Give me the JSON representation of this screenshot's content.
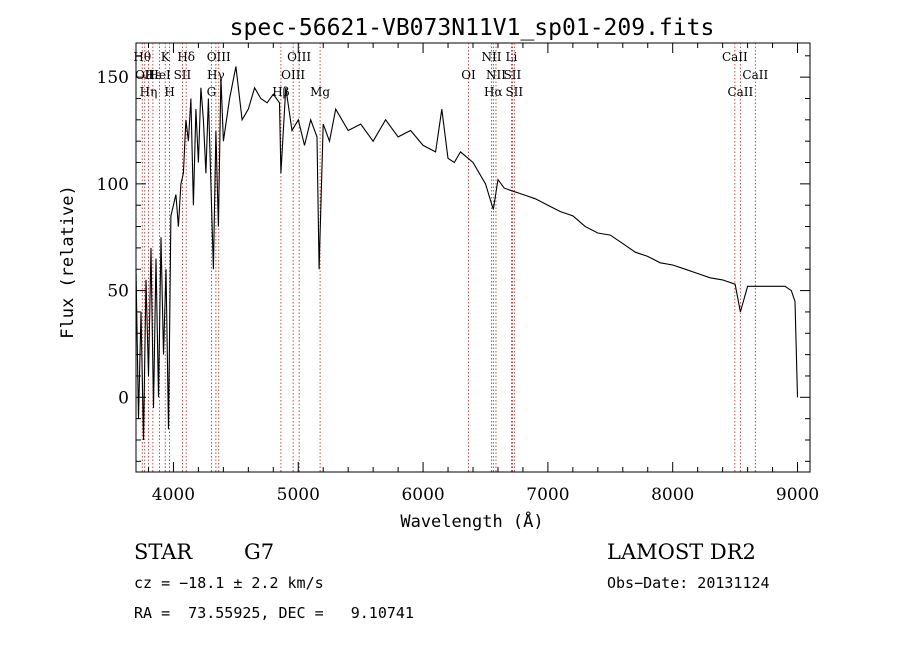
{
  "chart_data": {
    "type": "line",
    "title": "spec-56621-VB073N11V1_sp01-209.fits",
    "xlabel": "Wavelength (Å)",
    "ylabel": "Flux (relative)",
    "xlim": [
      3700,
      9100
    ],
    "ylim": [
      -35,
      166
    ],
    "xticks": [
      4000,
      5000,
      6000,
      7000,
      8000,
      9000
    ],
    "yticks": [
      0,
      50,
      100,
      150
    ],
    "xtick_labels": [
      "4000",
      "5000",
      "6000",
      "7000",
      "8000",
      "9000"
    ],
    "ytick_labels": [
      "0",
      "50",
      "100",
      "150"
    ],
    "grid": false,
    "legend": "none",
    "line_color": "#000000",
    "marker_color": "#b22222",
    "series": [
      {
        "x": [
          3700,
          3720,
          3740,
          3760,
          3780,
          3800,
          3820,
          3840,
          3860,
          3880,
          3900,
          3920,
          3940,
          3960,
          3980,
          4000,
          4020,
          4040,
          4060,
          4080,
          4100,
          4120,
          4140,
          4160,
          4180,
          4200,
          4220,
          4240,
          4260,
          4280,
          4300,
          4320,
          4340,
          4360,
          4380,
          4400,
          4450,
          4500,
          4550,
          4600,
          4650,
          4700,
          4750,
          4800,
          4850,
          4861,
          4900,
          4950,
          5000,
          5050,
          5100,
          5150,
          5167,
          5200,
          5250,
          5300,
          5400,
          5500,
          5600,
          5700,
          5800,
          5900,
          6000,
          6100,
          6150,
          6200,
          6250,
          6300,
          6400,
          6500,
          6563,
          6600,
          6650,
          6700,
          6800,
          6900,
          7000,
          7100,
          7200,
          7300,
          7400,
          7500,
          7600,
          7700,
          7800,
          7900,
          8000,
          8100,
          8200,
          8300,
          8400,
          8500,
          8542,
          8600,
          8700,
          8800,
          8900,
          8950,
          8980,
          9000
        ],
        "y": [
          60,
          -10,
          40,
          -20,
          55,
          10,
          70,
          -5,
          65,
          0,
          75,
          20,
          60,
          -15,
          85,
          90,
          95,
          80,
          100,
          105,
          130,
          120,
          140,
          90,
          135,
          110,
          145,
          130,
          105,
          140,
          100,
          60,
          125,
          80,
          150,
          120,
          140,
          155,
          130,
          135,
          145,
          140,
          138,
          142,
          138,
          105,
          145,
          125,
          130,
          118,
          130,
          122,
          60,
          128,
          120,
          135,
          125,
          128,
          120,
          130,
          122,
          125,
          118,
          115,
          135,
          112,
          110,
          115,
          110,
          100,
          88,
          102,
          98,
          97,
          95,
          93,
          90,
          87,
          85,
          80,
          77,
          76,
          72,
          68,
          66,
          63,
          62,
          60,
          58,
          56,
          55,
          53,
          40,
          52,
          52,
          52,
          52,
          50,
          45,
          0
        ]
      }
    ],
    "lines": [
      {
        "x": 3750,
        "label": "Hθ",
        "row": 0
      },
      {
        "x": 3770,
        "label": "OII",
        "row": 1
      },
      {
        "x": 3800,
        "label": "Hη",
        "row": 2
      },
      {
        "x": 3835,
        "label": "Hε",
        "row": 1
      },
      {
        "x": 3889,
        "label": "HeI",
        "row": 1
      },
      {
        "x": 3934,
        "label": "K",
        "row": 0
      },
      {
        "x": 3969,
        "label": "H",
        "row": 2
      },
      {
        "x": 4072,
        "label": "SII",
        "row": 1
      },
      {
        "x": 4102,
        "label": "Hδ",
        "row": 0
      },
      {
        "x": 4304,
        "label": "G",
        "row": 2
      },
      {
        "x": 4340,
        "label": "Hγ",
        "row": 1
      },
      {
        "x": 4363,
        "label": "OIII",
        "row": 0
      },
      {
        "x": 4861,
        "label": "Hβ",
        "row": 2
      },
      {
        "x": 4959,
        "label": "OIII",
        "row": 1
      },
      {
        "x": 5007,
        "label": "OIII",
        "row": 0
      },
      {
        "x": 5175,
        "label": "Mg",
        "row": 2
      },
      {
        "x": 6364,
        "label": "OI",
        "row": 1
      },
      {
        "x": 6548,
        "label": "NII",
        "row": 0
      },
      {
        "x": 6563,
        "label": "Hα",
        "row": 2
      },
      {
        "x": 6584,
        "label": "NII",
        "row": 1
      },
      {
        "x": 6708,
        "label": "Li",
        "row": 0
      },
      {
        "x": 6716,
        "label": "SII",
        "row": 1
      },
      {
        "x": 6731,
        "label": "SII",
        "row": 2
      },
      {
        "x": 8498,
        "label": "CaII",
        "row": 0
      },
      {
        "x": 8542,
        "label": "CaII",
        "row": 2
      },
      {
        "x": 8662,
        "label": "CaII",
        "row": 1
      }
    ]
  },
  "info": {
    "class": "STAR",
    "subclass": "G7",
    "survey": "LAMOST DR2",
    "cz": "cz = −18.1 ± 2.2 km/s",
    "obs_date": "Obs−Date: 20131124",
    "coords": "RA =  73.55925, DEC =   9.10741"
  }
}
